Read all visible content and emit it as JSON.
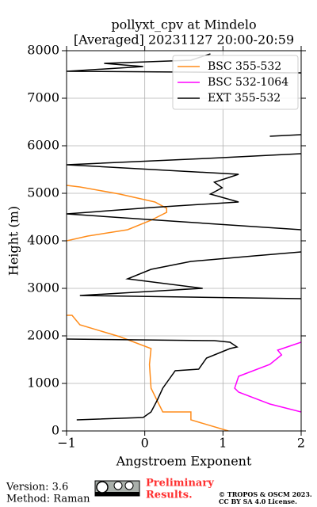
{
  "chart_data": {
    "type": "line",
    "title": "pollyxt_cpv at Mindelo",
    "subtitle": "[Averaged] 20231127 20:00-20:59",
    "xlabel": "Angstroem Exponent",
    "ylabel": "Height (m)",
    "xlim": [
      -1,
      2
    ],
    "ylim": [
      0,
      8000
    ],
    "xticks": [
      {
        "value": -1,
        "label": "−1"
      },
      0,
      1,
      2
    ],
    "yticks": [
      0,
      1000,
      2000,
      3000,
      4000,
      5000,
      6000,
      7000,
      8000
    ],
    "grid": true,
    "legend": "upper right",
    "series": [
      {
        "name": "BSC 355-532",
        "color": "#ff8c1a",
        "x": [
          1.07,
          0.59,
          0.59,
          0.23,
          0.18,
          0.08,
          0.06,
          0.08,
          -0.32,
          -0.83,
          -0.93,
          -1,
          null,
          -1,
          -0.73,
          -0.22,
          0.08,
          0.28,
          0.28,
          0.13,
          -0.32,
          -0.83,
          -1
        ],
        "y": [
          0,
          233,
          400,
          400,
          567,
          900,
          1400,
          1733,
          1983,
          2233,
          2433,
          2433,
          null,
          4000,
          4100,
          4233,
          4433,
          4600,
          4683,
          4817,
          4983,
          5133,
          5167
        ]
      },
      {
        "name": "BSC 532-1064",
        "color": "#ff00ff",
        "x": [
          2,
          1.6,
          1.2,
          1.15,
          1.2,
          1.6,
          1.75,
          1.7,
          1.85,
          2
        ],
        "y": [
          400,
          567,
          817,
          900,
          1150,
          1400,
          1600,
          1700,
          1783,
          1867
        ]
      },
      {
        "name": "EXT 355-532",
        "color": "#000000",
        "x": [
          -0.87,
          -0.02,
          0.08,
          0.16,
          0.23,
          0.39,
          0.69,
          0.79,
          1.09,
          1.18,
          1.09,
          0.89,
          -1,
          null,
          2,
          -0.83,
          0.74,
          -0.22,
          0.08,
          0.59,
          1.4,
          2,
          null,
          2,
          0.18,
          -1,
          0.08,
          1.2,
          0.84,
          0.99,
          0.89,
          1.2,
          -1,
          0.79,
          2,
          null,
          1.6,
          2,
          null,
          2,
          -1,
          -0.02,
          -0.52,
          0.59,
          0.84
        ],
        "y": [
          233,
          283,
          400,
          650,
          900,
          1267,
          1300,
          1533,
          1733,
          1767,
          1867,
          1900,
          1933,
          null,
          2783,
          2850,
          3000,
          3200,
          3400,
          3567,
          3683,
          3767,
          null,
          4233,
          4433,
          4567,
          4700,
          4817,
          4983,
          5117,
          5233,
          5400,
          5600,
          5733,
          5833,
          null,
          6200,
          6233,
          null,
          7533,
          7567,
          7667,
          7733,
          7800,
          7933
        ]
      }
    ]
  },
  "footer": {
    "version": "Version: 3.6",
    "method": "Method: Raman",
    "preliminary": "Preliminary",
    "results": "Results.",
    "copyright": "© TROPOS & OSCM 2023.",
    "license": "CC BY SA 4.0 License."
  }
}
